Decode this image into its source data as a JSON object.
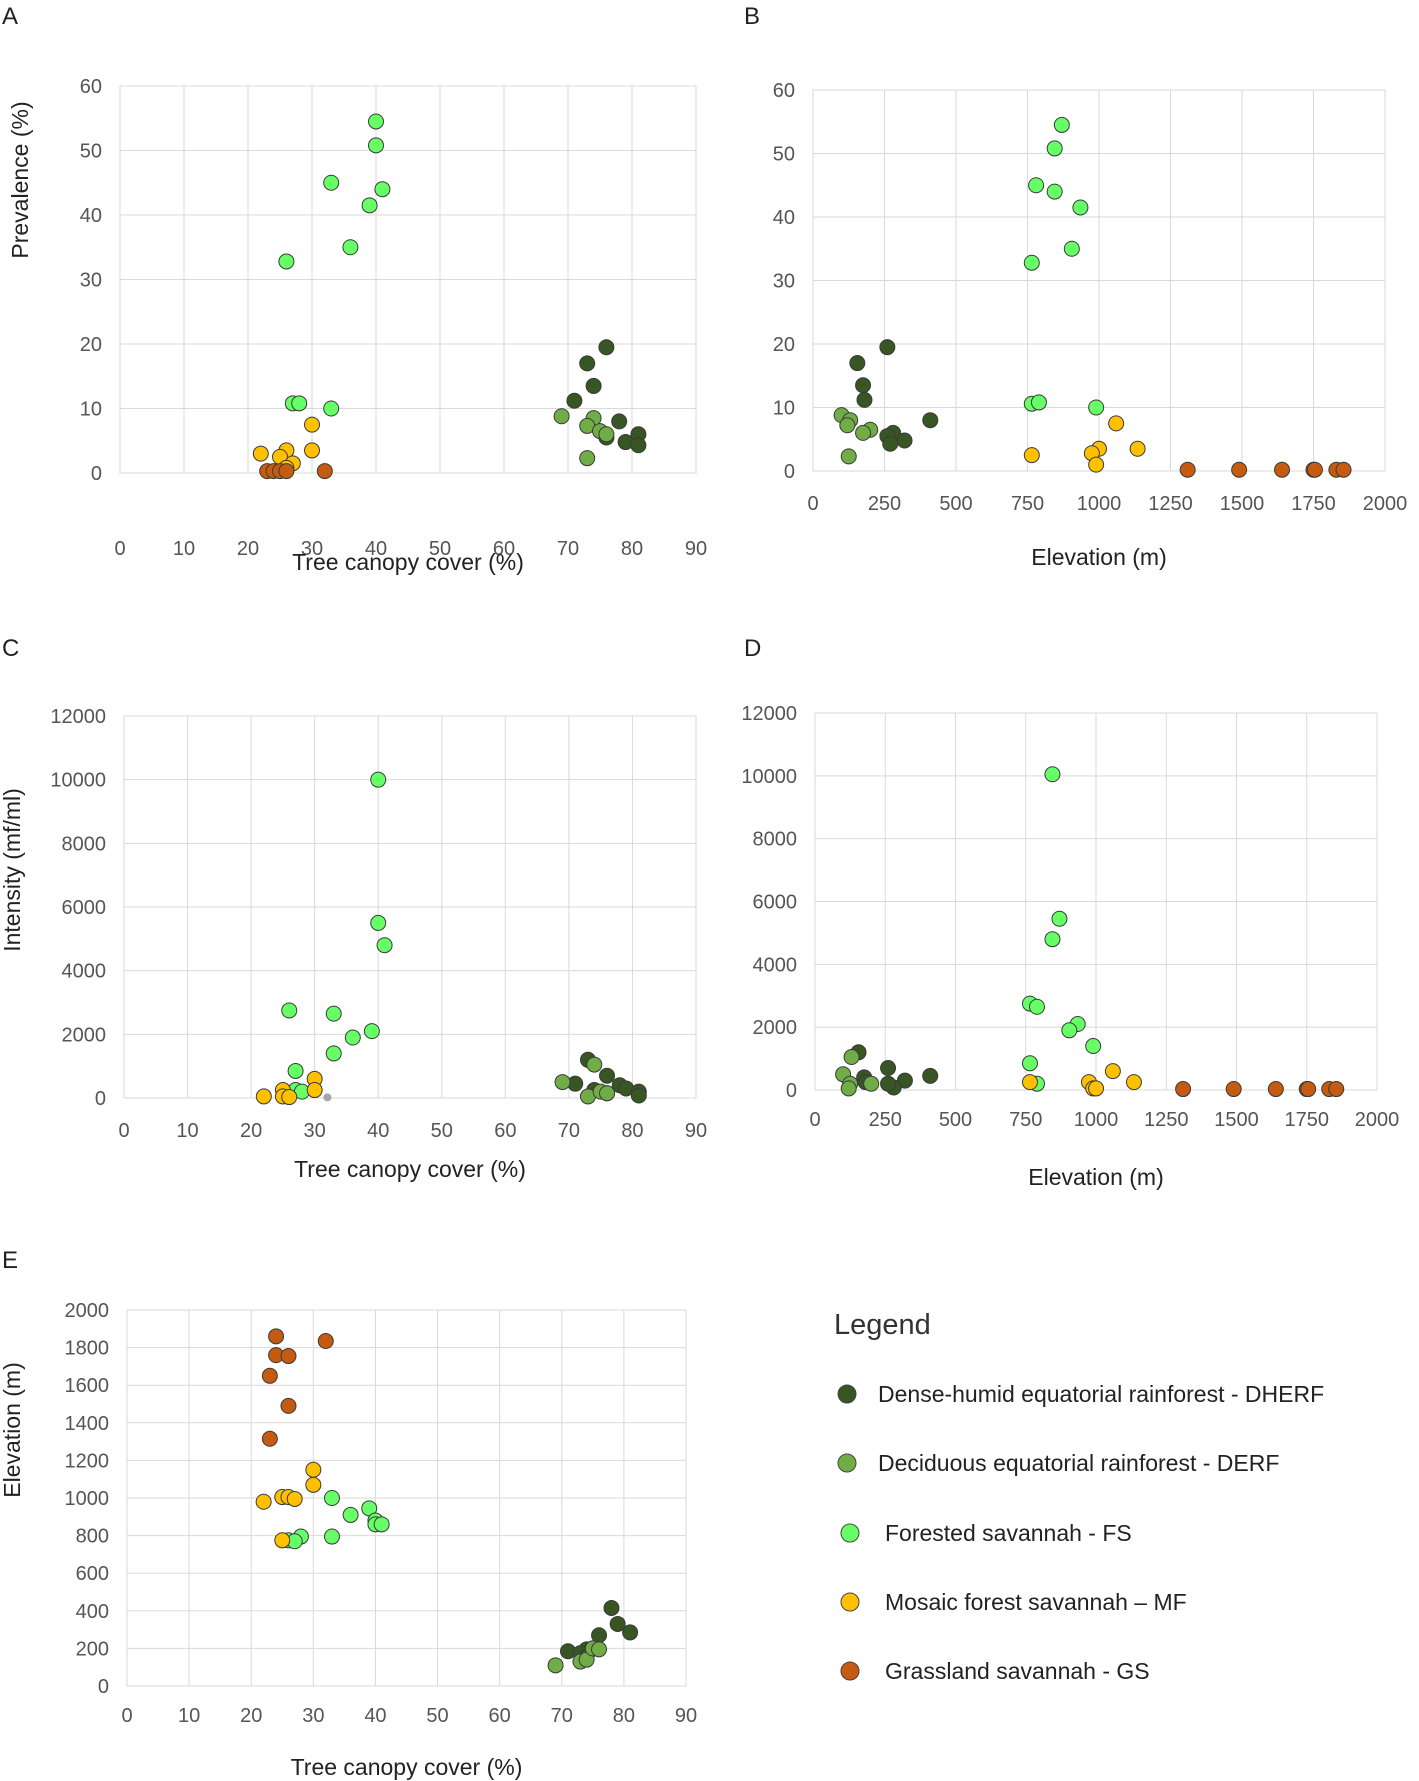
{
  "colors": {
    "DHERF": "#375623",
    "DERF": "#70ad47",
    "FS": "#66ff66",
    "MF": "#ffc000",
    "GS": "#c55a11",
    "other": "#a6a6a6"
  },
  "legend": {
    "title": "Legend",
    "items": [
      {
        "key": "DHERF",
        "label": "Dense-humid equatorial rainforest - DHERF"
      },
      {
        "key": "DERF",
        "label": "Deciduous  equatorial rainforest - DERF"
      },
      {
        "key": "FS",
        "label": "Forested savannah - FS"
      },
      {
        "key": "MF",
        "label": "Mosaic forest savannah – MF"
      },
      {
        "key": "GS",
        "label": "Grassland  savannah - GS"
      }
    ]
  },
  "chart_data": [
    {
      "id": "A",
      "letter": "A",
      "type": "scatter",
      "xlabel": "Tree canopy cover (%)",
      "ylabel": "Prevalence (%)",
      "xlim": [
        0,
        90
      ],
      "ylim": [
        0,
        60
      ],
      "xticks": [
        0,
        10,
        20,
        30,
        40,
        50,
        60,
        70,
        80,
        90
      ],
      "yticks": [
        0,
        10,
        20,
        30,
        40,
        50,
        60
      ],
      "series": [
        {
          "name": "DHERF",
          "points": [
            [
              76,
              19.5
            ],
            [
              73,
              17
            ],
            [
              74,
              13.5
            ],
            [
              71,
              11.2
            ],
            [
              78,
              8
            ],
            [
              81,
              6
            ],
            [
              76,
              5.5
            ],
            [
              79,
              4.8
            ],
            [
              81,
              4.3
            ]
          ]
        },
        {
          "name": "DERF",
          "points": [
            [
              69,
              8.8
            ],
            [
              74,
              8.5
            ],
            [
              73,
              7.3
            ],
            [
              75,
              6.5
            ],
            [
              76,
              6
            ],
            [
              73,
              2.3
            ]
          ]
        },
        {
          "name": "FS",
          "points": [
            [
              40,
              54.5
            ],
            [
              40,
              50.8
            ],
            [
              33,
              45
            ],
            [
              41,
              44
            ],
            [
              39,
              41.5
            ],
            [
              36,
              35
            ],
            [
              26,
              32.8
            ],
            [
              27,
              10.8
            ],
            [
              28,
              10.8
            ],
            [
              33,
              10
            ]
          ]
        },
        {
          "name": "MF",
          "points": [
            [
              30,
              7.5
            ],
            [
              26,
              3.5
            ],
            [
              22,
              3
            ],
            [
              25,
              2.5
            ],
            [
              30,
              3.5
            ],
            [
              27,
              1.5
            ],
            [
              26,
              0.8
            ]
          ]
        },
        {
          "name": "GS",
          "points": [
            [
              23,
              0.3
            ],
            [
              24,
              0.3
            ],
            [
              25,
              0.3
            ],
            [
              26,
              0.3
            ],
            [
              32,
              0.3
            ]
          ]
        }
      ]
    },
    {
      "id": "B",
      "letter": "B",
      "type": "scatter",
      "xlabel": "Elevation (m)",
      "ylabel": "",
      "xlim": [
        0,
        2000
      ],
      "ylim": [
        0,
        60
      ],
      "xticks": [
        0,
        250,
        500,
        750,
        1000,
        1250,
        1500,
        1750,
        2000
      ],
      "yticks": [
        0,
        10,
        20,
        30,
        40,
        50,
        60
      ],
      "series": [
        {
          "name": "DHERF",
          "points": [
            [
              260,
              19.5
            ],
            [
              155,
              17
            ],
            [
              175,
              13.5
            ],
            [
              180,
              11.2
            ],
            [
              410,
              8
            ],
            [
              280,
              6
            ],
            [
              260,
              5.5
            ],
            [
              320,
              4.8
            ],
            [
              270,
              4.3
            ]
          ]
        },
        {
          "name": "DERF",
          "points": [
            [
              100,
              8.8
            ],
            [
              130,
              8
            ],
            [
              120,
              7.2
            ],
            [
              200,
              6.5
            ],
            [
              175,
              6
            ],
            [
              125,
              2.3
            ]
          ]
        },
        {
          "name": "FS",
          "points": [
            [
              870,
              54.5
            ],
            [
              845,
              50.8
            ],
            [
              780,
              45
            ],
            [
              845,
              44
            ],
            [
              935,
              41.5
            ],
            [
              905,
              35
            ],
            [
              765,
              32.8
            ],
            [
              765,
              10.6
            ],
            [
              790,
              10.8
            ],
            [
              990,
              10
            ]
          ]
        },
        {
          "name": "MF",
          "points": [
            [
              1060,
              7.5
            ],
            [
              1000,
              3.5
            ],
            [
              1135,
              3.5
            ],
            [
              975,
              2.8
            ],
            [
              765,
              2.5
            ],
            [
              990,
              1
            ]
          ]
        },
        {
          "name": "GS",
          "points": [
            [
              1310,
              0.2
            ],
            [
              1490,
              0.2
            ],
            [
              1640,
              0.2
            ],
            [
              1750,
              0.2
            ],
            [
              1755,
              0.2
            ],
            [
              1830,
              0.2
            ],
            [
              1855,
              0.2
            ]
          ]
        }
      ]
    },
    {
      "id": "C",
      "letter": "C",
      "type": "scatter",
      "xlabel": "Tree canopy cover (%)",
      "ylabel": "Intensity (mf/ml)",
      "xlim": [
        0,
        90
      ],
      "ylim": [
        0,
        12000
      ],
      "xticks": [
        0,
        10,
        20,
        30,
        40,
        50,
        60,
        70,
        80,
        90
      ],
      "yticks": [
        0,
        2000,
        4000,
        6000,
        8000,
        10000,
        12000
      ],
      "series": [
        {
          "name": "DHERF",
          "points": [
            [
              73,
              1200
            ],
            [
              76,
              700
            ],
            [
              71,
              450
            ],
            [
              78,
              400
            ],
            [
              74,
              250
            ],
            [
              79,
              300
            ],
            [
              81,
              200
            ],
            [
              76,
              150
            ],
            [
              81,
              80
            ]
          ]
        },
        {
          "name": "DERF",
          "points": [
            [
              69,
              500
            ],
            [
              74,
              1050
            ],
            [
              73,
              50
            ],
            [
              75,
              200
            ],
            [
              76,
              150
            ]
          ]
        },
        {
          "name": "FS",
          "points": [
            [
              40,
              10000
            ],
            [
              40,
              5500
            ],
            [
              41,
              4800
            ],
            [
              26,
              2750
            ],
            [
              33,
              2650
            ],
            [
              39,
              2100
            ],
            [
              36,
              1900
            ],
            [
              33,
              1400
            ],
            [
              27,
              850
            ],
            [
              27,
              250
            ],
            [
              28,
              200
            ]
          ]
        },
        {
          "name": "MF",
          "points": [
            [
              30,
              600
            ],
            [
              25,
              250
            ],
            [
              30,
              250
            ],
            [
              22,
              50
            ],
            [
              25,
              50
            ],
            [
              26,
              30
            ]
          ]
        },
        {
          "name": "other",
          "points": [
            [
              32,
              20
            ]
          ]
        }
      ]
    },
    {
      "id": "D",
      "letter": "D",
      "type": "scatter",
      "xlabel": "Elevation (m)",
      "ylabel": "",
      "xlim": [
        0,
        2000
      ],
      "ylim": [
        0,
        12000
      ],
      "xticks": [
        0,
        250,
        500,
        750,
        1000,
        1250,
        1500,
        1750,
        2000
      ],
      "yticks": [
        0,
        2000,
        4000,
        6000,
        8000,
        10000,
        12000
      ],
      "series": [
        {
          "name": "DHERF",
          "points": [
            [
              155,
              1200
            ],
            [
              260,
              700
            ],
            [
              410,
              450
            ],
            [
              175,
              400
            ],
            [
              320,
              300
            ],
            [
              180,
              250
            ],
            [
              280,
              80
            ],
            [
              260,
              200
            ]
          ]
        },
        {
          "name": "DERF",
          "points": [
            [
              100,
              500
            ],
            [
              130,
              1050
            ],
            [
              125,
              200
            ],
            [
              200,
              200
            ],
            [
              120,
              50
            ]
          ]
        },
        {
          "name": "FS",
          "points": [
            [
              845,
              10050
            ],
            [
              870,
              5450
            ],
            [
              845,
              4800
            ],
            [
              765,
              2750
            ],
            [
              790,
              2650
            ],
            [
              935,
              2100
            ],
            [
              905,
              1900
            ],
            [
              990,
              1400
            ],
            [
              765,
              850
            ],
            [
              790,
              200
            ]
          ]
        },
        {
          "name": "MF",
          "points": [
            [
              1060,
              600
            ],
            [
              975,
              250
            ],
            [
              1135,
              250
            ],
            [
              765,
              250
            ],
            [
              990,
              50
            ],
            [
              1000,
              50
            ]
          ]
        },
        {
          "name": "GS",
          "points": [
            [
              1310,
              30
            ],
            [
              1490,
              30
            ],
            [
              1640,
              30
            ],
            [
              1750,
              30
            ],
            [
              1755,
              30
            ],
            [
              1830,
              30
            ],
            [
              1855,
              30
            ]
          ]
        }
      ]
    },
    {
      "id": "E",
      "letter": "E",
      "type": "scatter",
      "xlabel": "Tree canopy cover (%)",
      "ylabel": "Elevation (m)",
      "xlim": [
        0,
        90
      ],
      "ylim": [
        0,
        2000
      ],
      "xticks": [
        0,
        10,
        20,
        30,
        40,
        50,
        60,
        70,
        80,
        90
      ],
      "yticks": [
        0,
        200,
        400,
        600,
        800,
        1000,
        1200,
        1400,
        1600,
        1800,
        2000
      ],
      "series": [
        {
          "name": "DHERF",
          "points": [
            [
              78,
              415
            ],
            [
              79,
              330
            ],
            [
              81,
              285
            ],
            [
              76,
              270
            ],
            [
              71,
              185
            ],
            [
              74,
              195
            ],
            [
              73,
              175
            ],
            [
              74,
              155
            ],
            [
              75,
              200
            ]
          ]
        },
        {
          "name": "DERF",
          "points": [
            [
              69,
              110
            ],
            [
              73,
              130
            ],
            [
              74,
              140
            ],
            [
              75,
              200
            ],
            [
              76,
              195
            ]
          ]
        },
        {
          "name": "FS",
          "points": [
            [
              33,
              1000
            ],
            [
              39,
              945
            ],
            [
              36,
              910
            ],
            [
              40,
              880
            ],
            [
              40,
              860
            ],
            [
              41,
              860
            ],
            [
              28,
              795
            ],
            [
              33,
              795
            ],
            [
              26,
              775
            ],
            [
              27,
              770
            ]
          ]
        },
        {
          "name": "MF",
          "points": [
            [
              30,
              1150
            ],
            [
              30,
              1070
            ],
            [
              25,
              1005
            ],
            [
              26,
              1005
            ],
            [
              27,
              995
            ],
            [
              22,
              980
            ],
            [
              25,
              775
            ]
          ]
        },
        {
          "name": "GS",
          "points": [
            [
              24,
              1860
            ],
            [
              32,
              1835
            ],
            [
              24,
              1760
            ],
            [
              26,
              1755
            ],
            [
              23,
              1650
            ],
            [
              26,
              1490
            ],
            [
              23,
              1315
            ]
          ]
        }
      ]
    }
  ]
}
